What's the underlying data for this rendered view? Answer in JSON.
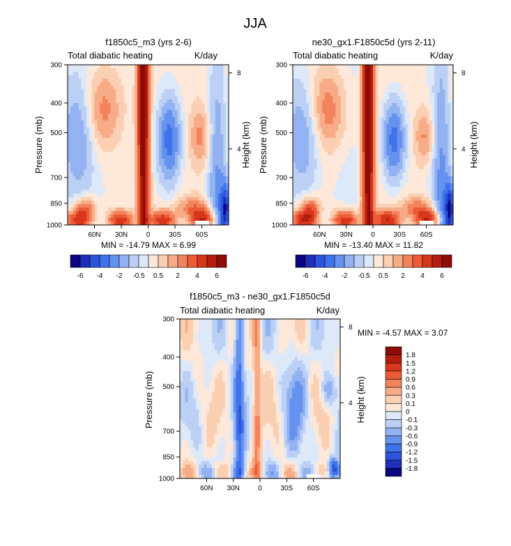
{
  "page": {
    "title": "JJA"
  },
  "colors": {
    "map_palette": [
      "#0b0580",
      "#1f2fba",
      "#2b54dc",
      "#3e73eb",
      "#6692ef",
      "#93b2f1",
      "#bcd0f5",
      "#dde9f9",
      "#fde8da",
      "#fbcfb2",
      "#f7ac87",
      "#f2835d",
      "#ec5b35",
      "#d8361c",
      "#b41d0d",
      "#8d0c05"
    ]
  },
  "chart_data": [
    {
      "type": "heatmap",
      "title": "f1850c5_m3 (yrs 2-6)",
      "left_string": "Total diabatic heating",
      "right_string": "K/day",
      "ylabel": "Pressure (mb)",
      "y2label": "Height (km)",
      "x_ticks": [
        "60N",
        "30N",
        "0",
        "30S",
        "60S"
      ],
      "x_tick_values": [
        60,
        30,
        0,
        -30,
        -60
      ],
      "x_range": [
        90,
        -90
      ],
      "y_ticks": [
        "300",
        "400",
        "500",
        "700",
        "850",
        "1000"
      ],
      "y_tick_values": [
        300,
        400,
        500,
        700,
        850,
        1000
      ],
      "y_range": [
        300,
        1000
      ],
      "y_scale": "log",
      "y2_ticks": [
        "8",
        "4"
      ],
      "y2_tick_values": [
        8,
        4
      ],
      "stats": "MIN = -14.79  MAX =  6.99",
      "min": -14.79,
      "max": 6.99
    },
    {
      "type": "heatmap",
      "title": "ne30_gx1.F1850c5d (yrs 2-11)",
      "left_string": "Total diabatic heating",
      "right_string": "K/day",
      "ylabel": "Pressure (mb)",
      "y2label": "Height (km)",
      "x_ticks": [
        "60N",
        "30N",
        "0",
        "30S",
        "60S"
      ],
      "x_tick_values": [
        60,
        30,
        0,
        -30,
        -60
      ],
      "x_range": [
        90,
        -90
      ],
      "y_ticks": [
        "300",
        "400",
        "500",
        "700",
        "850",
        "1000"
      ],
      "y_tick_values": [
        300,
        400,
        500,
        700,
        850,
        1000
      ],
      "y_range": [
        300,
        1000
      ],
      "y_scale": "log",
      "y2_ticks": [
        "8",
        "4"
      ],
      "y2_tick_values": [
        8,
        4
      ],
      "stats": "MIN = -13.40  MAX =  11.82",
      "min": -13.4,
      "max": 11.82
    },
    {
      "type": "heatmap",
      "title": "f1850c5_m3 - ne30_gx1.F1850c5d",
      "left_string": "Total diabatic heating",
      "right_string": "K/day",
      "ylabel": "Pressure (mb)",
      "y2label": "Height (km)",
      "x_ticks": [
        "60N",
        "30N",
        "0",
        "30S",
        "60S"
      ],
      "x_tick_values": [
        60,
        30,
        0,
        -30,
        -60
      ],
      "x_range": [
        90,
        -90
      ],
      "y_ticks": [
        "300",
        "400",
        "500",
        "700",
        "850",
        "1000"
      ],
      "y_tick_values": [
        300,
        400,
        500,
        700,
        850,
        1000
      ],
      "y_range": [
        300,
        1000
      ],
      "y_scale": "log",
      "y2_ticks": [
        "8",
        "4"
      ],
      "y2_tick_values": [
        8,
        4
      ],
      "stats": "MIN = -4.57  MAX =  3.07",
      "min": -4.57,
      "max": 3.07
    }
  ],
  "colorbars": {
    "shared": {
      "labels": [
        "-6",
        "-4",
        "-2",
        "-0.5",
        "0.5",
        "2",
        "4",
        "6"
      ],
      "levels": [
        -8,
        -7,
        -6,
        -5,
        -4,
        -3,
        -2,
        -1,
        -0.5,
        0.5,
        1,
        2,
        3,
        4,
        5,
        6,
        7
      ],
      "colors": [
        "#0b0580",
        "#1f2fba",
        "#2b54dc",
        "#3e73eb",
        "#6692ef",
        "#93b2f1",
        "#bcd0f5",
        "#dde9f9",
        "#ffffff",
        "#fde8da",
        "#fbcfb2",
        "#f7ac87",
        "#f2835d",
        "#ec5b35",
        "#d8361c",
        "#b41d0d",
        "#8d0c05"
      ]
    },
    "difference": {
      "labels": [
        "1.8",
        "1.5",
        "1.2",
        "0.9",
        "0.6",
        "0.3",
        "0.1",
        "0",
        "-0.1",
        "-0.3",
        "-0.6",
        "-0.9",
        "-1.2",
        "-1.5",
        "-1.8"
      ],
      "colors": [
        "#8d0c05",
        "#b41d0d",
        "#d8361c",
        "#ec5b35",
        "#f2835d",
        "#f7ac87",
        "#fbcfb2",
        "#fde8da",
        "#dde9f9",
        "#bcd0f5",
        "#93b2f1",
        "#6692ef",
        "#3e73eb",
        "#2b54dc",
        "#1f2fba",
        "#0b0580"
      ]
    }
  }
}
